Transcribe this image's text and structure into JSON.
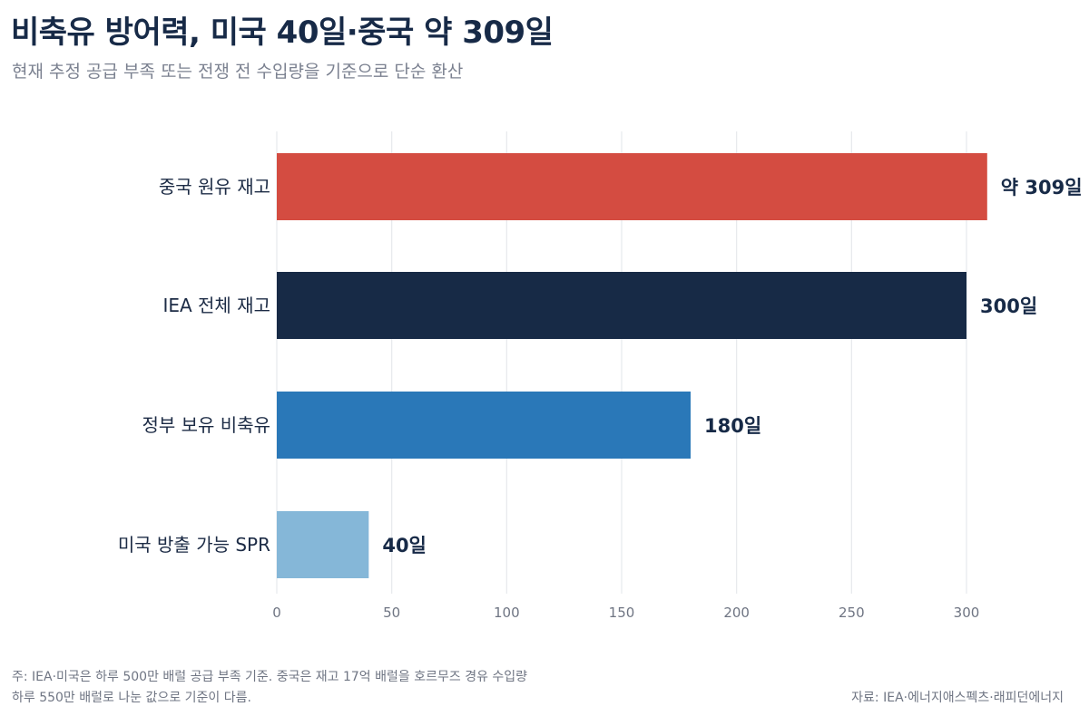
{
  "header": {
    "title": "비축유 방어력, 미국 40일·중국 약 309일",
    "subtitle": "현재 추정 공급 부족 또는 전쟁 전 수입량을 기준으로 단순 환산"
  },
  "chart_data": {
    "type": "bar",
    "orientation": "horizontal",
    "categories": [
      "중국 원유 재고",
      "IEA 전체 재고",
      "정부 보유 비축유",
      "미국 방출 가능 SPR"
    ],
    "values": [
      309,
      300,
      180,
      40
    ],
    "value_labels": [
      "약 309일",
      "300일",
      "180일",
      "40일"
    ],
    "colors": [
      "#d44c41",
      "#172a46",
      "#2a78b8",
      "#85b7d8"
    ],
    "xlim": [
      0,
      310
    ],
    "xticks": [
      0,
      50,
      100,
      150,
      200,
      250,
      300
    ],
    "xtick_labels": [
      "0",
      "50",
      "100",
      "150",
      "200",
      "250",
      "300"
    ],
    "grid": "vertical",
    "legend": "none"
  },
  "footer": {
    "note_line1": "주: IEA·미국은 하루 500만 배럴 공급 부족 기준. 중국은 재고 17억 배럴을 호르무즈 경유 수입량",
    "note_line2": "하루 550만 배럴로 나눈 값으로 기준이 다름.",
    "source": "자료: IEA·에너지애스펙츠·래피던에너지"
  }
}
